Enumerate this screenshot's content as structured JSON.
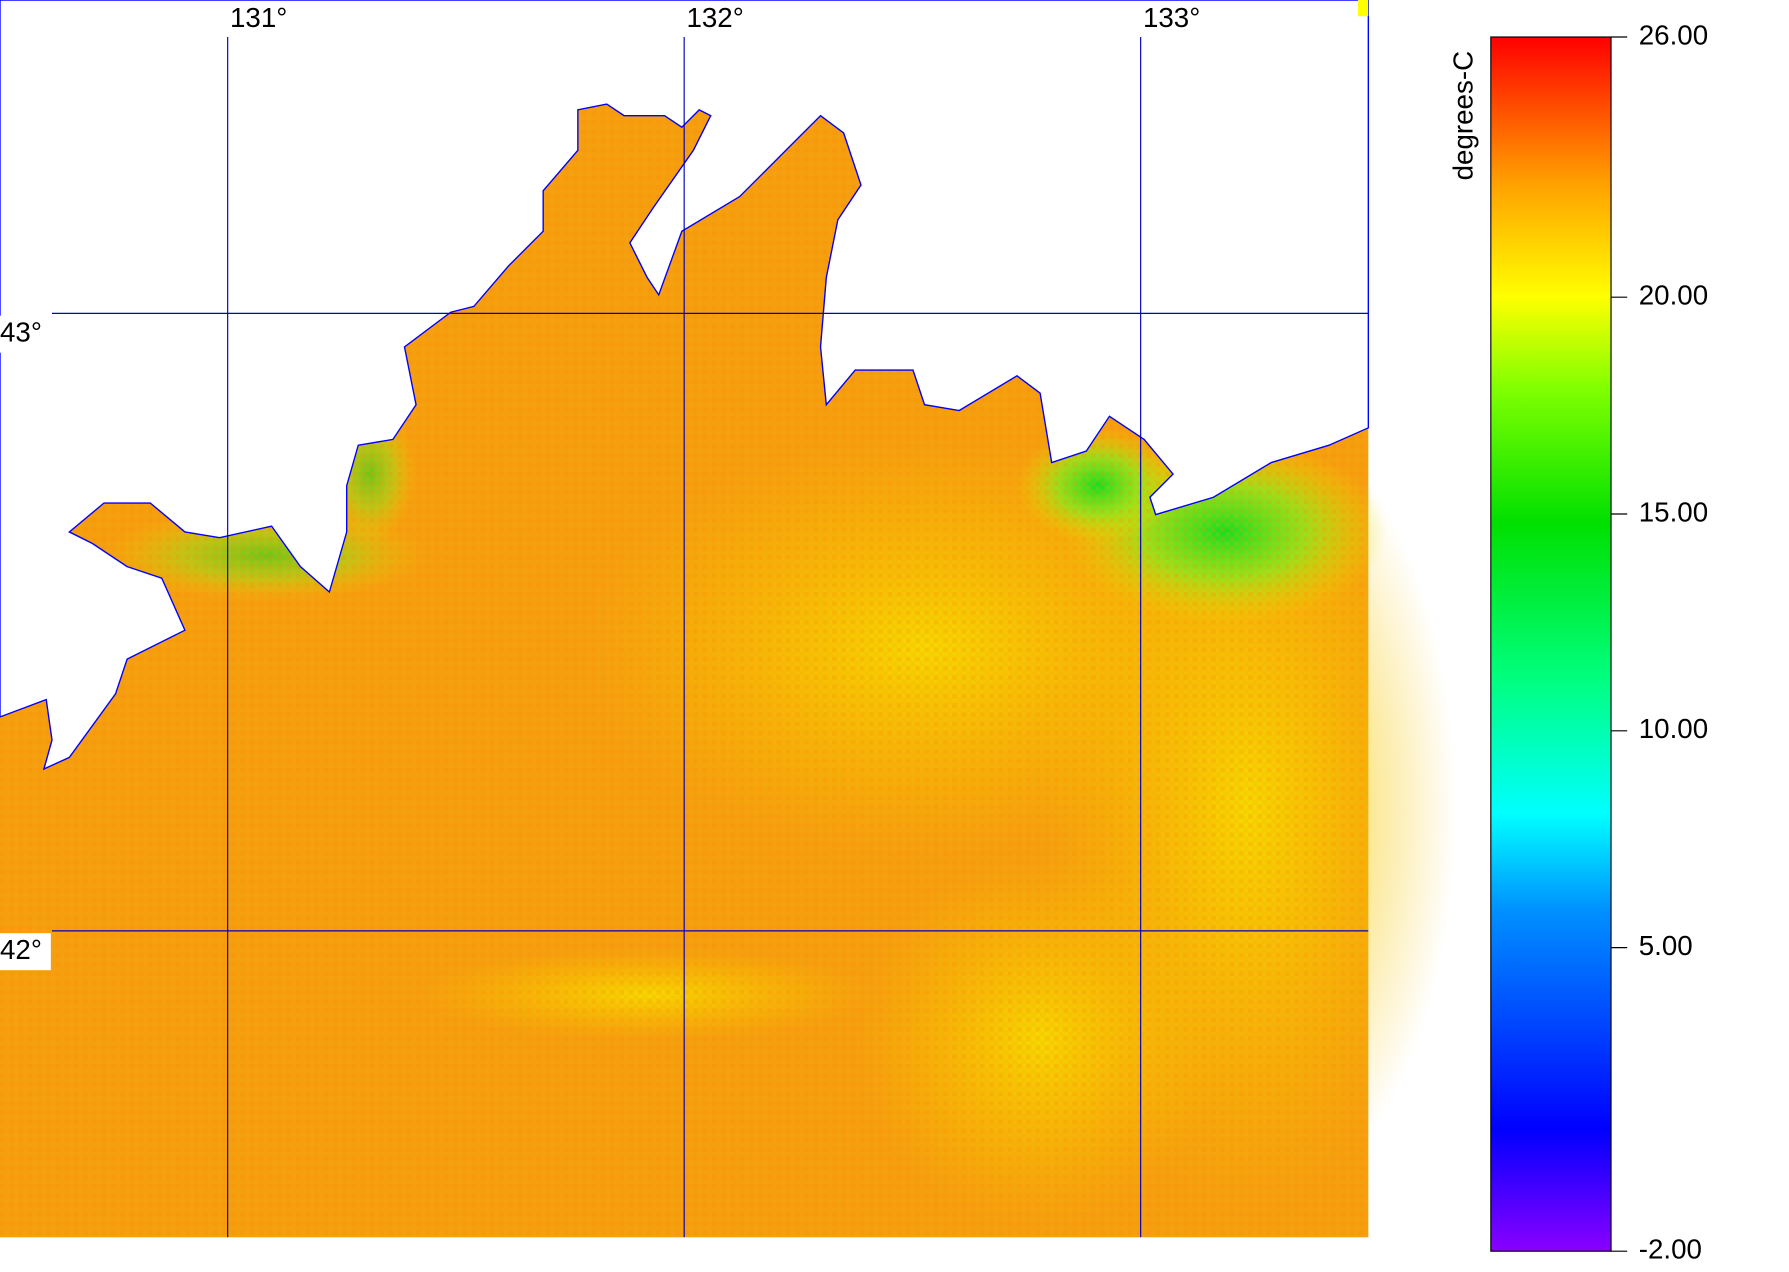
{
  "map": {
    "lon_labels": [
      {
        "value": 131,
        "label": "131°"
      },
      {
        "value": 132,
        "label": "132°"
      },
      {
        "value": 133,
        "label": "133°"
      }
    ],
    "lat_labels": [
      {
        "value": 43,
        "label": "43°"
      },
      {
        "value": 42,
        "label": "42°"
      }
    ]
  },
  "colorbar": {
    "unit": "degrees-C",
    "range": [
      -2,
      26
    ],
    "ticks": [
      {
        "value": 26,
        "label": "26.00"
      },
      {
        "value": 20,
        "label": "20.00"
      },
      {
        "value": 15,
        "label": "15.00"
      },
      {
        "value": 10,
        "label": "10.00"
      },
      {
        "value": 5,
        "label": "5.00"
      },
      {
        "value": -2,
        "label": "-2.00"
      }
    ]
  }
}
